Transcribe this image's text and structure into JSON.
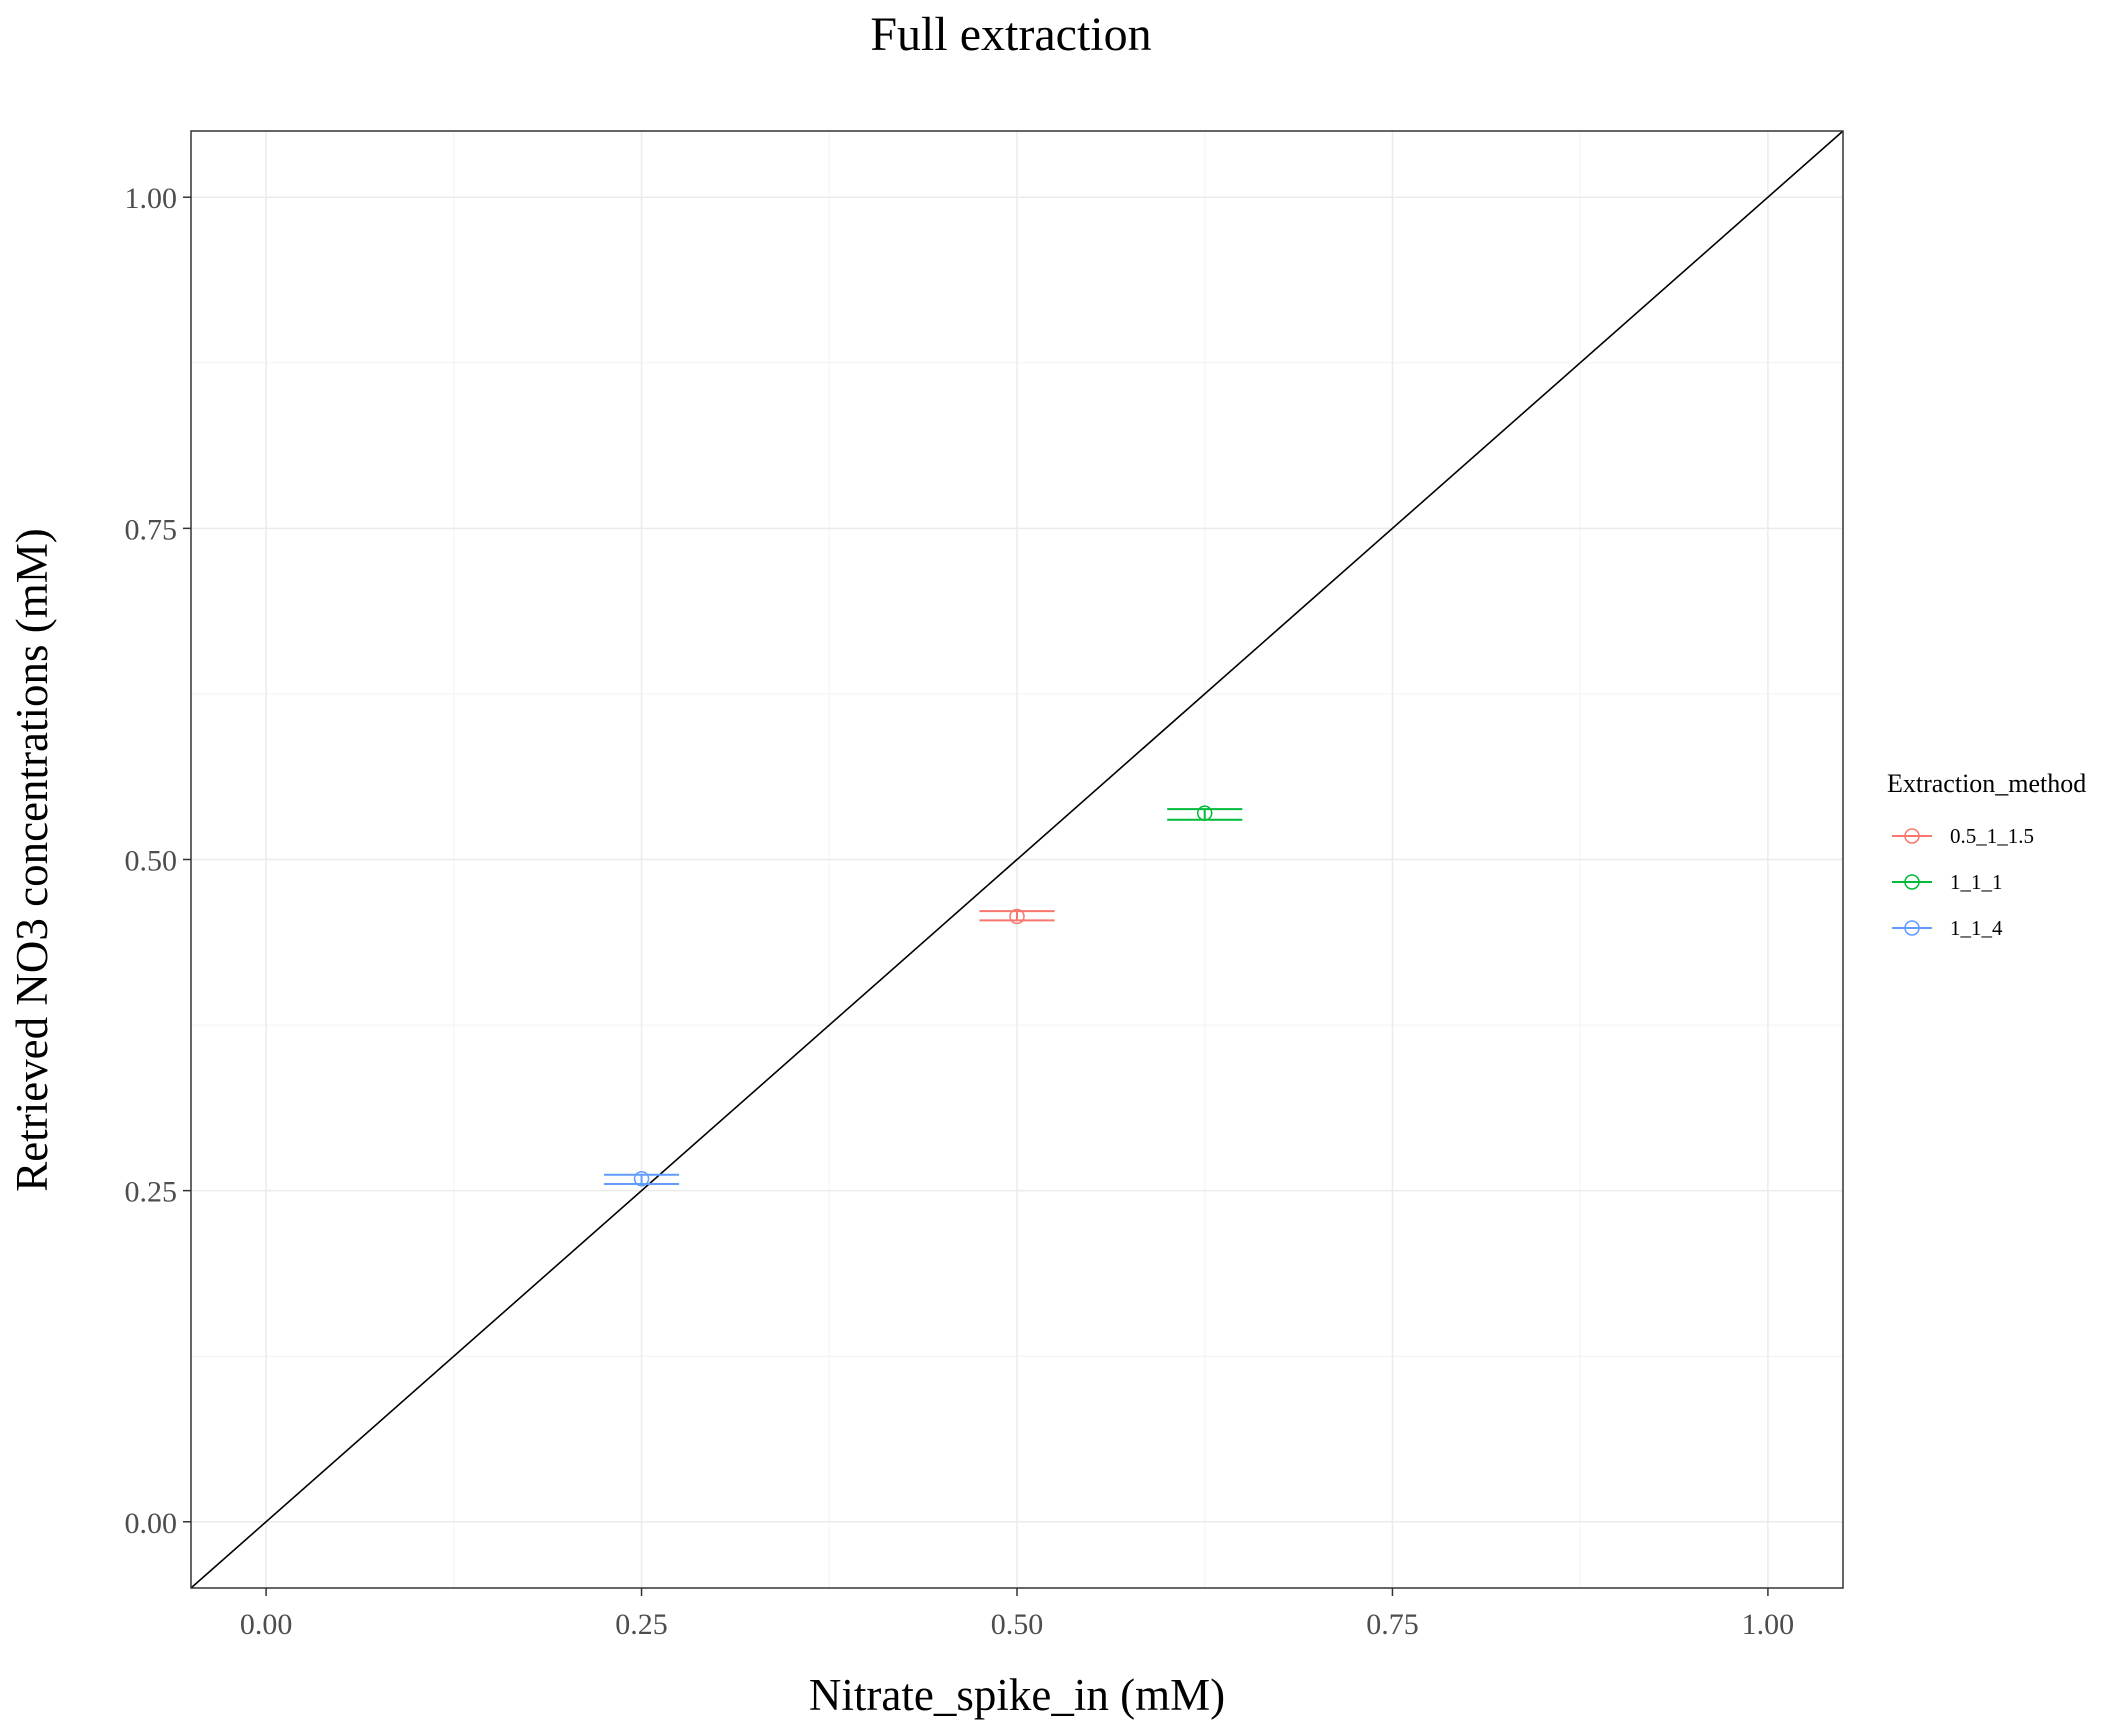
{
  "chart_data": {
    "type": "scatter",
    "title": "Full extraction",
    "xlabel": "Nitrate_spike_in (mM)",
    "ylabel": "Retrieved NO3 concentrations (mM)",
    "xlim": [
      -0.05,
      1.05
    ],
    "ylim": [
      -0.05,
      1.05
    ],
    "x_ticks": [
      0,
      0.25,
      0.5,
      0.75,
      1
    ],
    "x_tick_labels": [
      "0.00",
      "0.25",
      "0.50",
      "0.75",
      "1.00"
    ],
    "y_ticks": [
      0,
      0.25,
      0.5,
      0.75,
      1
    ],
    "y_tick_labels": [
      "0.00",
      "0.25",
      "0.50",
      "0.75",
      "1.00"
    ],
    "grid": true,
    "reference_line": {
      "slope": 1,
      "intercept": 0,
      "color": "#000000"
    },
    "legend": {
      "title": "Extraction_method",
      "position": "right"
    },
    "series": [
      {
        "name": "0.5_1_1.5",
        "color": "#F8766D",
        "x": 0.5,
        "y": 0.457,
        "ymin": 0.454,
        "ymax": 0.461,
        "xerr_halfwidth": 0.025
      },
      {
        "name": "1_1_1",
        "color": "#00BA38",
        "x": 0.625,
        "y": 0.535,
        "ymin": 0.53,
        "ymax": 0.538,
        "xerr_halfwidth": 0.025
      },
      {
        "name": "1_1_4",
        "color": "#619CFF",
        "x": 0.25,
        "y": 0.259,
        "ymin": 0.255,
        "ymax": 0.262,
        "xerr_halfwidth": 0.025
      }
    ]
  }
}
